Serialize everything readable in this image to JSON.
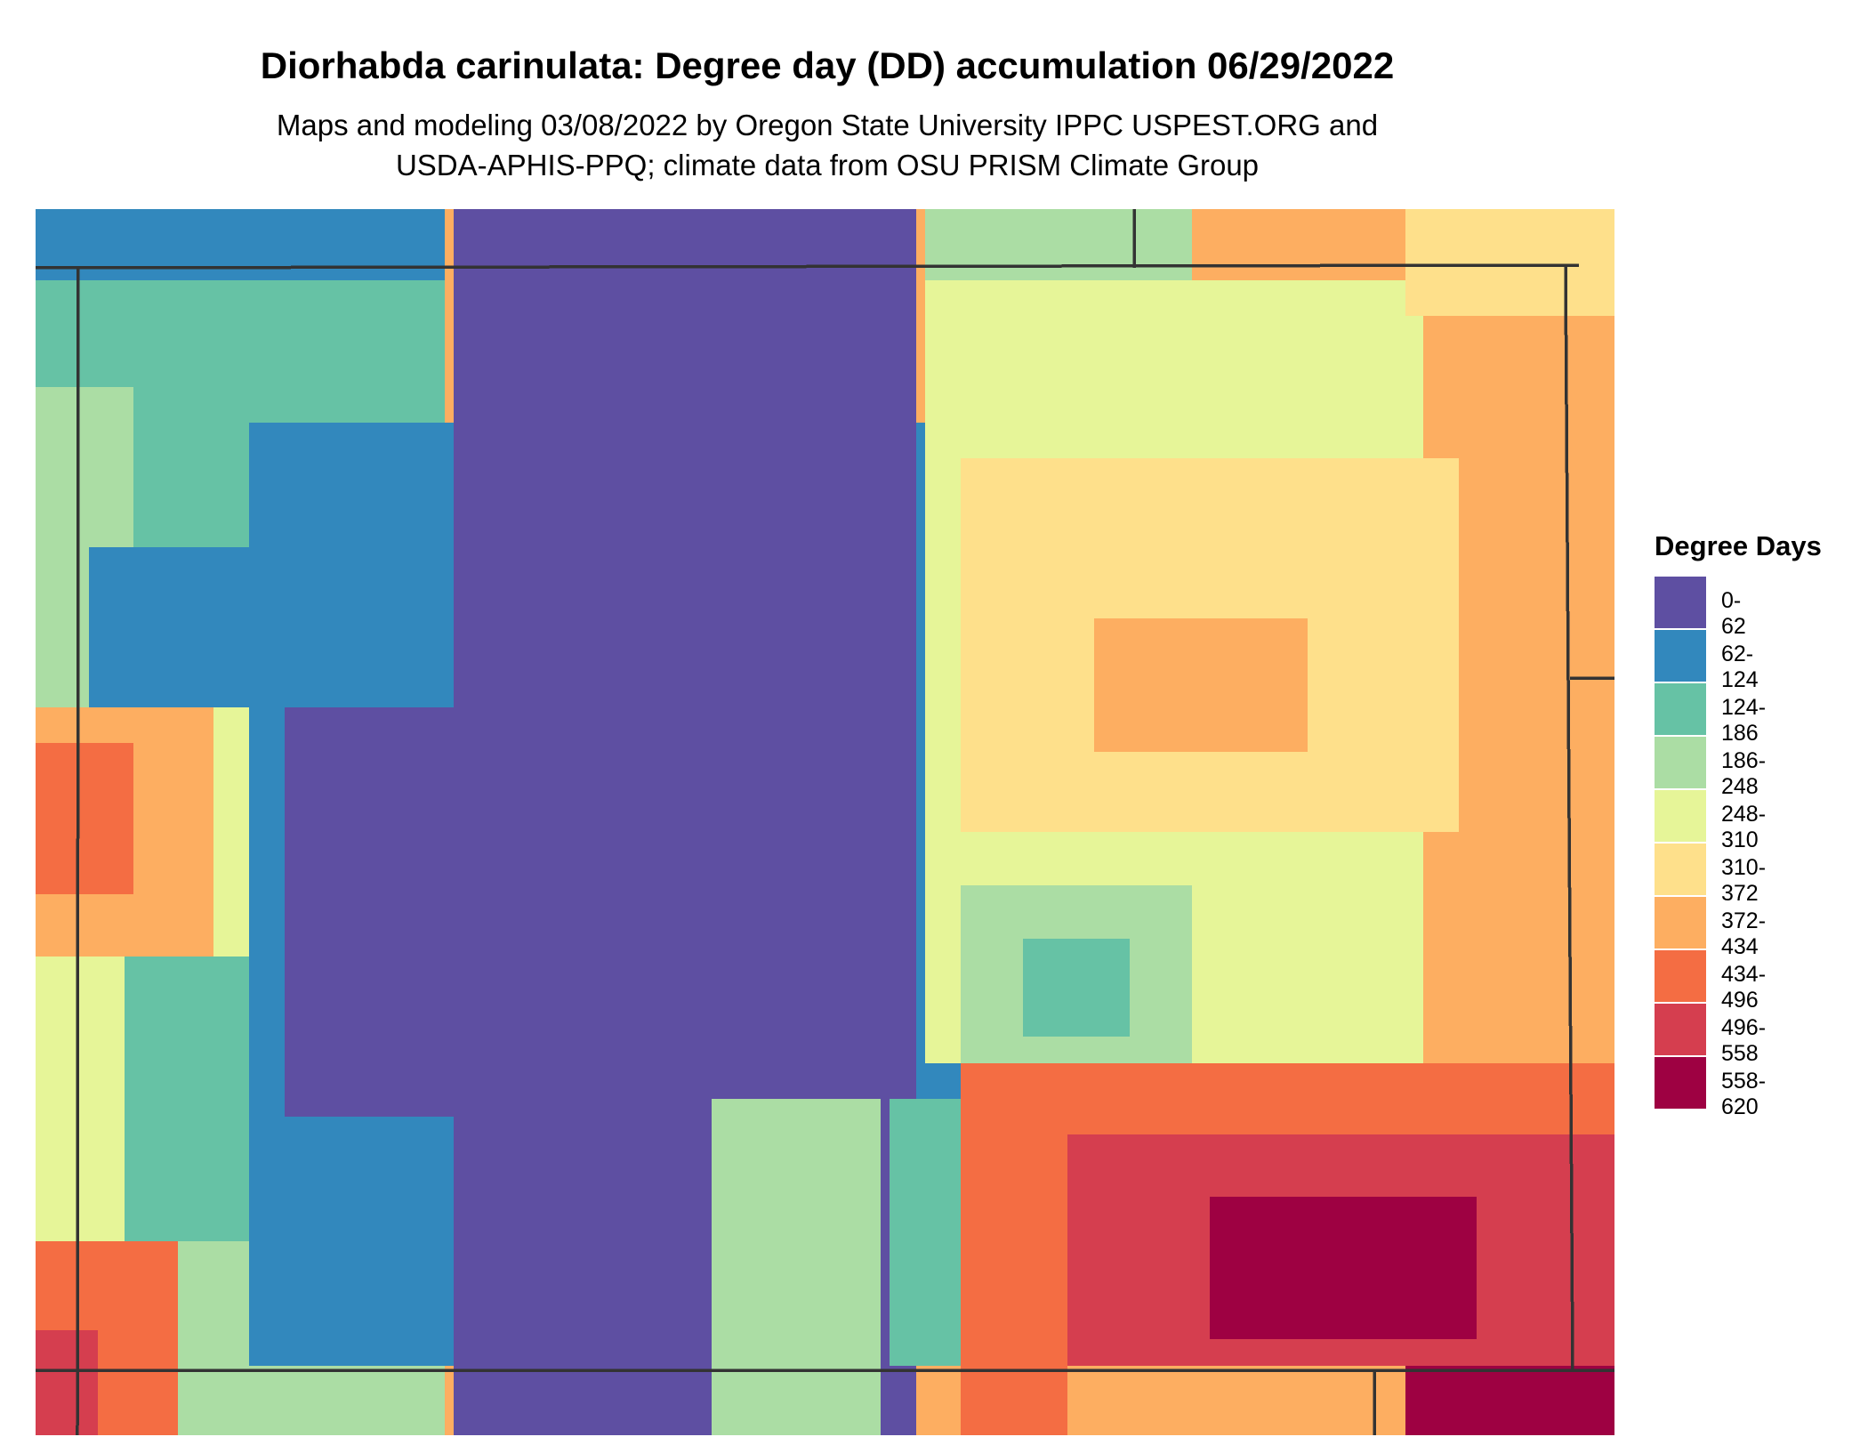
{
  "title": "Diorhabda carinulata: Degree day (DD) accumulation 06/29/2022",
  "subtitle_lines": [
    "Maps and modeling 03/08/2022 by Oregon State University IPPC USPEST.ORG and",
    "USDA-APHIS-PPQ; climate data from OSU PRISM Climate Group"
  ],
  "legend": {
    "title": "Degree Days",
    "items": [
      {
        "label": "0-62",
        "color": "#5E4FA2"
      },
      {
        "label": "62-124",
        "color": "#3288BD"
      },
      {
        "label": "124-186",
        "color": "#66C2A5"
      },
      {
        "label": "186-248",
        "color": "#ABDDA4"
      },
      {
        "label": "248-310",
        "color": "#E6F598"
      },
      {
        "label": "310-372",
        "color": "#FEE08B"
      },
      {
        "label": "372-434",
        "color": "#FDAE61"
      },
      {
        "label": "434-496",
        "color": "#F46D43"
      },
      {
        "label": "496-558",
        "color": "#D53E4F"
      },
      {
        "label": "558-620",
        "color": "#9E0142"
      }
    ]
  },
  "map": {
    "boundary_color": "#333333"
  }
}
